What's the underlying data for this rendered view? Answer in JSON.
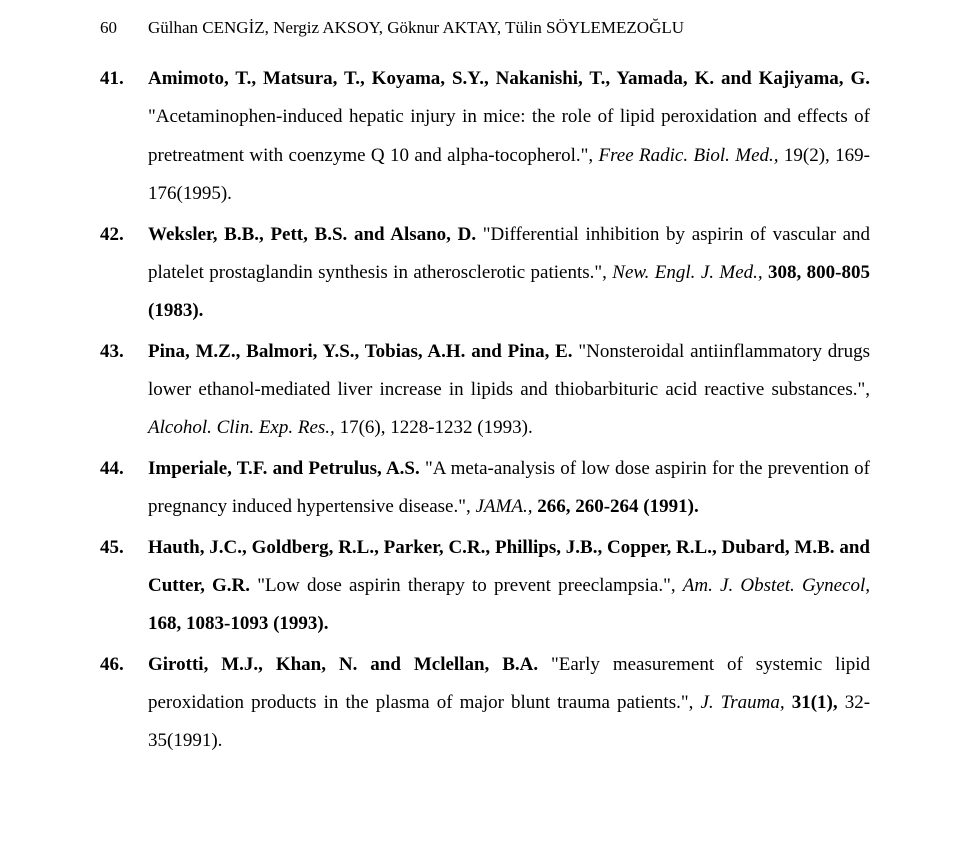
{
  "header": {
    "page_number": "60",
    "authors": "Gülhan CENGİZ, Nergiz AKSOY, Göknur AKTAY, Tülin SÖYLEMEZOĞLU"
  },
  "references": [
    {
      "num": "41.",
      "authors": "Amimoto, T., Matsura, T., Koyama, S.Y., Nakanishi, T., Yamada, K. and Kajiyama, G.",
      "title": "\"Acetaminophen-induced hepatic injury in mice: the role of lipid peroxidation and effects of pretreatment with coenzyme Q 10 and alpha-tocopherol.\",",
      "journal": "Free Radic. Biol. Med., ",
      "citation": "19(2), 169-176(1995)."
    },
    {
      "num": "42.",
      "authors": "Weksler, B.B., Pett, B.S. and Alsano, D.",
      "title": "\"Differential inhibition by aspirin of vascular and platelet prostaglandin synthesis in atherosclerotic patients.\",",
      "journal": "New. Engl. J. Med., ",
      "citation": "308, 800-805 (1983)."
    },
    {
      "num": "43.",
      "authors": "Pina, M.Z., Balmori, Y.S., Tobias, A.H. and Pina, E.",
      "title": "\"Nonsteroidal antiinflammatory drugs lower ethanol-mediated liver increase in lipids and thiobarbituric acid reactive substances.\",",
      "journal": "Alcohol. Clin. Exp. Res., ",
      "citation": "17(6), 1228-1232 (1993)."
    },
    {
      "num": "44.",
      "authors": "Imperiale, T.F. and Petrulus, A.S.",
      "title": "\"A meta-analysis of low dose aspirin for the prevention of pregnancy induced hypertensive disease.\",",
      "journal": "JAMA., ",
      "citation": "266, 260-264 (1991)."
    },
    {
      "num": "45.",
      "authors": "Hauth, J.C., Goldberg, R.L., Parker, C.R., Phillips, J.B., Copper, R.L., Dubard, M.B. and Cutter, G.R.",
      "title": "\"Low dose aspirin therapy to prevent preeclampsia.\",",
      "journal": "Am. J. Obstet. Gynecol, ",
      "citation": "168, 1083-1093 (1993)."
    },
    {
      "num": "46.",
      "authors": "Girotti, M.J., Khan, N. and Mclellan, B.A.",
      "title": "\"Early measurement of systemic lipid peroxidation products in the plasma of major blunt trauma patients.\",",
      "journal": "J. Trauma, ",
      "citation": "31(1), ",
      "tail": "32-35(1991)."
    }
  ]
}
